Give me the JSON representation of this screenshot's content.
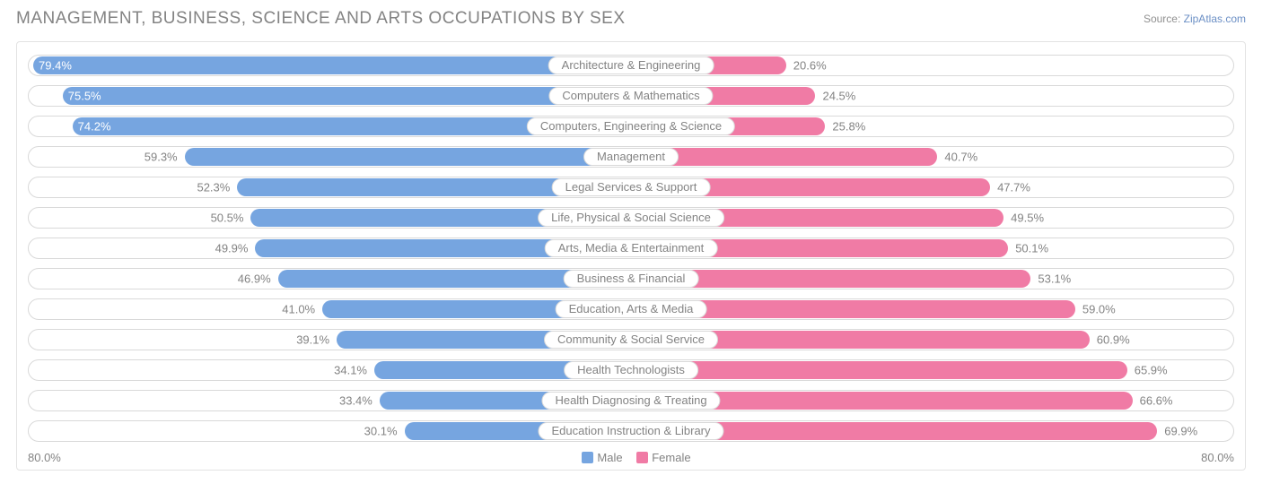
{
  "header": {
    "title": "MANAGEMENT, BUSINESS, SCIENCE AND ARTS OCCUPATIONS BY SEX",
    "source_prefix": "Source: ",
    "source_link": "ZipAtlas.com"
  },
  "chart": {
    "type": "diverging-bar",
    "axis_max_percent": 80.0,
    "axis_left_label": "80.0%",
    "axis_right_label": "80.0%",
    "colors": {
      "male": "#76a5e0",
      "female": "#f07ba5",
      "text": "#838383",
      "border": "#d9d9d9",
      "background": "#ffffff",
      "frame_border": "#e3e3e3"
    },
    "legend": {
      "male_label": "Male",
      "female_label": "Female"
    },
    "rows": [
      {
        "category": "Architecture & Engineering",
        "male": 79.4,
        "female": 20.6,
        "male_inside": true,
        "female_inside": false
      },
      {
        "category": "Computers & Mathematics",
        "male": 75.5,
        "female": 24.5,
        "male_inside": true,
        "female_inside": false
      },
      {
        "category": "Computers, Engineering & Science",
        "male": 74.2,
        "female": 25.8,
        "male_inside": true,
        "female_inside": false
      },
      {
        "category": "Management",
        "male": 59.3,
        "female": 40.7,
        "male_inside": false,
        "female_inside": false
      },
      {
        "category": "Legal Services & Support",
        "male": 52.3,
        "female": 47.7,
        "male_inside": false,
        "female_inside": false
      },
      {
        "category": "Life, Physical & Social Science",
        "male": 50.5,
        "female": 49.5,
        "male_inside": false,
        "female_inside": false
      },
      {
        "category": "Arts, Media & Entertainment",
        "male": 49.9,
        "female": 50.1,
        "male_inside": false,
        "female_inside": false
      },
      {
        "category": "Business & Financial",
        "male": 46.9,
        "female": 53.1,
        "male_inside": false,
        "female_inside": false
      },
      {
        "category": "Education, Arts & Media",
        "male": 41.0,
        "female": 59.0,
        "male_inside": false,
        "female_inside": false
      },
      {
        "category": "Community & Social Service",
        "male": 39.1,
        "female": 60.9,
        "male_inside": false,
        "female_inside": false
      },
      {
        "category": "Health Technologists",
        "male": 34.1,
        "female": 65.9,
        "male_inside": false,
        "female_inside": false
      },
      {
        "category": "Health Diagnosing & Treating",
        "male": 33.4,
        "female": 66.6,
        "male_inside": false,
        "female_inside": false
      },
      {
        "category": "Education Instruction & Library",
        "male": 30.1,
        "female": 69.9,
        "male_inside": false,
        "female_inside": false
      }
    ]
  }
}
